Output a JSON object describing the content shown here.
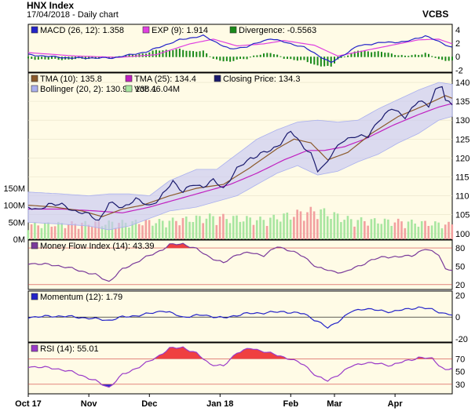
{
  "header": {
    "title": "HNX Index",
    "subtitle": "17/04/2018 - Daily chart",
    "brand": "VCBS"
  },
  "x_axis": {
    "labels": [
      "Oct 17",
      "Nov",
      "Dec",
      "Jan 18",
      "Feb",
      "Mar",
      "Apr"
    ]
  },
  "colors": {
    "panel_bg": "#fffbe6",
    "band_fill": "#c8c8f4",
    "band_line": "#aab0ee",
    "price": "#1a1a6e",
    "tma10": "#8b5a2b",
    "tma25": "#c020c0",
    "vol_up": "#a8e6a0",
    "vol_down": "#f2a0a0",
    "macd": "#2323c8",
    "exp": "#e040e0",
    "div": "#1a8a1a",
    "mfi": "#7a3a9a",
    "rsi": "#9a3ac8",
    "mom": "#2323c8",
    "overbought_fill": "#ef4040",
    "ref_line": "#d04040"
  },
  "chart_data": [
    {
      "type": "bar",
      "panel": "MACD",
      "legend": [
        {
          "label": "MACD (26, 12): 1.358",
          "color": "#2323c8"
        },
        {
          "label": "EXP (9): 1.914",
          "color": "#e040e0"
        },
        {
          "label": "Divergence: -0.5563",
          "color": "#1a8a1a"
        }
      ],
      "y_ticks": [
        "4",
        "2",
        "0",
        "-2"
      ],
      "ylim": [
        -2.3,
        4.8
      ],
      "n": 127,
      "macd_key": [
        [
          0,
          0.3
        ],
        [
          12,
          -0.2
        ],
        [
          25,
          -0.2
        ],
        [
          35,
          0.7
        ],
        [
          45,
          2.5
        ],
        [
          52,
          3.1
        ],
        [
          60,
          1.1
        ],
        [
          65,
          1.5
        ],
        [
          72,
          2.7
        ],
        [
          82,
          1.4
        ],
        [
          90,
          -0.9
        ],
        [
          98,
          1.6
        ],
        [
          105,
          2.1
        ],
        [
          112,
          2.2
        ],
        [
          118,
          3.1
        ],
        [
          126,
          1.36
        ]
      ],
      "exp_key": [
        [
          0,
          0.6
        ],
        [
          14,
          0.1
        ],
        [
          27,
          -0.1
        ],
        [
          38,
          0.3
        ],
        [
          48,
          1.9
        ],
        [
          55,
          2.6
        ],
        [
          62,
          1.6
        ],
        [
          70,
          1.9
        ],
        [
          76,
          2.4
        ],
        [
          85,
          1.7
        ],
        [
          92,
          0.1
        ],
        [
          100,
          0.9
        ],
        [
          108,
          1.7
        ],
        [
          116,
          2.5
        ],
        [
          122,
          2.6
        ],
        [
          126,
          1.91
        ]
      ]
    },
    {
      "type": "line",
      "panel": "Price",
      "legend": [
        {
          "label": "TMA (10): 135.8",
          "color": "#8b5a2b"
        },
        {
          "label": "TMA (25): 134.4",
          "color": "#c020c0"
        },
        {
          "label": "Closing Price: 134.3",
          "color": "#1a1a6e"
        },
        {
          "label": "Bollinger (20, 2): 130.9 - 138.1",
          "color": "#aab0ee"
        },
        {
          "label": "Vol: 46.04M",
          "color": "#a8e6a0"
        }
      ],
      "y_ticks": [
        "140",
        "135",
        "130",
        "125",
        "120",
        "115",
        "110",
        "105",
        "100"
      ],
      "ylim": [
        98.5,
        142.5
      ],
      "vol_ticks": [
        "150M",
        "100M",
        "50M",
        "0M"
      ],
      "vol_lim": [
        0,
        180
      ],
      "close_key": [
        [
          0,
          107
        ],
        [
          3,
          106
        ],
        [
          6,
          108
        ],
        [
          10,
          107.5
        ],
        [
          14,
          106
        ],
        [
          18,
          105
        ],
        [
          21,
          103.5
        ],
        [
          24,
          108
        ],
        [
          28,
          107
        ],
        [
          32,
          109
        ],
        [
          36,
          107.5
        ],
        [
          39,
          109
        ],
        [
          43,
          114
        ],
        [
          46,
          111
        ],
        [
          49,
          113
        ],
        [
          52,
          112.5
        ],
        [
          55,
          114
        ],
        [
          58,
          112
        ],
        [
          62,
          117
        ],
        [
          66,
          120
        ],
        [
          69,
          121
        ],
        [
          72,
          122
        ],
        [
          75,
          124
        ],
        [
          78,
          127
        ],
        [
          81,
          124
        ],
        [
          84,
          121
        ],
        [
          86,
          116.5
        ],
        [
          88,
          118
        ],
        [
          90,
          121
        ],
        [
          93,
          124
        ],
        [
          97,
          126
        ],
        [
          101,
          125.5
        ],
        [
          104,
          130
        ],
        [
          108,
          133
        ],
        [
          112,
          131
        ],
        [
          116,
          135
        ],
        [
          119,
          134
        ],
        [
          121,
          138
        ],
        [
          123,
          139
        ],
        [
          124,
          135
        ],
        [
          126,
          134.3
        ]
      ],
      "tma10_key": [
        [
          0,
          107.5
        ],
        [
          8,
          107
        ],
        [
          16,
          106
        ],
        [
          22,
          104.5
        ],
        [
          28,
          106.5
        ],
        [
          34,
          107.5
        ],
        [
          42,
          110
        ],
        [
          50,
          112
        ],
        [
          58,
          113
        ],
        [
          66,
          117.5
        ],
        [
          74,
          122.5
        ],
        [
          79,
          125
        ],
        [
          84,
          124
        ],
        [
          89,
          119.5
        ],
        [
          95,
          121.5
        ],
        [
          102,
          126.5
        ],
        [
          110,
          131
        ],
        [
          118,
          134
        ],
        [
          124,
          136.5
        ],
        [
          126,
          135.8
        ]
      ],
      "tma25_key": [
        [
          0,
          106.5
        ],
        [
          10,
          106.5
        ],
        [
          20,
          106
        ],
        [
          28,
          105.5
        ],
        [
          36,
          107
        ],
        [
          44,
          109
        ],
        [
          52,
          111
        ],
        [
          60,
          113
        ],
        [
          68,
          116
        ],
        [
          76,
          119.5
        ],
        [
          83,
          122
        ],
        [
          88,
          122
        ],
        [
          94,
          123
        ],
        [
          100,
          125
        ],
        [
          108,
          128.5
        ],
        [
          116,
          131.5
        ],
        [
          122,
          133.5
        ],
        [
          126,
          134.4
        ]
      ],
      "bb_upper_key": [
        [
          0,
          111
        ],
        [
          10,
          110.5
        ],
        [
          18,
          110
        ],
        [
          24,
          110.5
        ],
        [
          30,
          110.5
        ],
        [
          36,
          110
        ],
        [
          42,
          114
        ],
        [
          50,
          117
        ],
        [
          56,
          117
        ],
        [
          62,
          121
        ],
        [
          68,
          125
        ],
        [
          74,
          127.5
        ],
        [
          80,
          129.5
        ],
        [
          86,
          130
        ],
        [
          92,
          129.5
        ],
        [
          98,
          130
        ],
        [
          104,
          133
        ],
        [
          110,
          135.5
        ],
        [
          116,
          138
        ],
        [
          122,
          140
        ],
        [
          126,
          139.5
        ]
      ],
      "bb_lower_key": [
        [
          0,
          103
        ],
        [
          10,
          102.5
        ],
        [
          18,
          102
        ],
        [
          24,
          101
        ],
        [
          30,
          102
        ],
        [
          36,
          104
        ],
        [
          42,
          106
        ],
        [
          50,
          107
        ],
        [
          56,
          108.5
        ],
        [
          62,
          110
        ],
        [
          68,
          113
        ],
        [
          74,
          116
        ],
        [
          80,
          118
        ],
        [
          86,
          115.5
        ],
        [
          92,
          116.5
        ],
        [
          98,
          119
        ],
        [
          104,
          121
        ],
        [
          110,
          124
        ],
        [
          116,
          126.5
        ],
        [
          122,
          130
        ],
        [
          126,
          131
        ]
      ],
      "vol_key": [
        [
          0,
          45
        ],
        [
          20,
          50
        ],
        [
          40,
          55
        ],
        [
          55,
          70
        ],
        [
          70,
          60
        ],
        [
          80,
          80
        ],
        [
          86,
          90
        ],
        [
          96,
          60
        ],
        [
          110,
          55
        ],
        [
          126,
          46
        ]
      ]
    },
    {
      "type": "line",
      "panel": "Money Flow Index",
      "legend": [
        {
          "label": "Money Flow Index (14): 43.39",
          "color": "#7a3a9a"
        }
      ],
      "y_ticks": [
        "80",
        "50",
        "20"
      ],
      "ylim": [
        12,
        93
      ],
      "ref_lines": [
        80,
        20
      ],
      "key": [
        [
          0,
          55
        ],
        [
          8,
          52
        ],
        [
          14,
          45
        ],
        [
          20,
          36
        ],
        [
          24,
          25
        ],
        [
          28,
          45
        ],
        [
          34,
          62
        ],
        [
          40,
          78
        ],
        [
          42,
          85
        ],
        [
          46,
          87
        ],
        [
          50,
          78
        ],
        [
          54,
          65
        ],
        [
          58,
          55
        ],
        [
          62,
          70
        ],
        [
          66,
          72
        ],
        [
          70,
          68
        ],
        [
          74,
          82
        ],
        [
          78,
          76
        ],
        [
          82,
          65
        ],
        [
          86,
          48
        ],
        [
          90,
          42
        ],
        [
          94,
          40
        ],
        [
          98,
          50
        ],
        [
          102,
          60
        ],
        [
          106,
          66
        ],
        [
          110,
          65
        ],
        [
          114,
          68
        ],
        [
          118,
          78
        ],
        [
          122,
          70
        ],
        [
          124,
          45
        ],
        [
          126,
          43.4
        ]
      ]
    },
    {
      "type": "line",
      "panel": "Momentum",
      "legend": [
        {
          "label": "Momentum (12): 1.79",
          "color": "#2323c8"
        }
      ],
      "y_ticks": [
        "20",
        "0",
        "-20"
      ],
      "ylim": [
        -23,
        24
      ],
      "ref_lines": [
        0
      ],
      "key": [
        [
          0,
          0
        ],
        [
          10,
          1
        ],
        [
          18,
          -1
        ],
        [
          24,
          -3
        ],
        [
          28,
          0
        ],
        [
          34,
          2
        ],
        [
          40,
          6
        ],
        [
          46,
          0
        ],
        [
          52,
          2
        ],
        [
          58,
          -1
        ],
        [
          64,
          3
        ],
        [
          70,
          4
        ],
        [
          76,
          5
        ],
        [
          82,
          3
        ],
        [
          86,
          -4
        ],
        [
          89,
          -10
        ],
        [
          92,
          -4
        ],
        [
          96,
          5
        ],
        [
          100,
          8
        ],
        [
          104,
          6
        ],
        [
          108,
          5
        ],
        [
          112,
          7
        ],
        [
          116,
          9
        ],
        [
          120,
          7
        ],
        [
          124,
          3
        ],
        [
          126,
          1.8
        ]
      ]
    },
    {
      "type": "line",
      "panel": "RSI",
      "legend": [
        {
          "label": "RSI (14): 55.01",
          "color": "#9a3ac8"
        }
      ],
      "y_ticks": [
        "70",
        "50",
        "30"
      ],
      "ylim": [
        15,
        95
      ],
      "ref_lines": [
        70,
        30
      ],
      "key": [
        [
          0,
          58
        ],
        [
          8,
          55
        ],
        [
          14,
          48
        ],
        [
          20,
          35
        ],
        [
          24,
          25
        ],
        [
          28,
          45
        ],
        [
          34,
          60
        ],
        [
          38,
          72
        ],
        [
          42,
          86
        ],
        [
          46,
          88
        ],
        [
          50,
          78
        ],
        [
          54,
          62
        ],
        [
          58,
          58
        ],
        [
          62,
          80
        ],
        [
          66,
          86
        ],
        [
          70,
          82
        ],
        [
          74,
          75
        ],
        [
          78,
          70
        ],
        [
          82,
          60
        ],
        [
          86,
          42
        ],
        [
          89,
          35
        ],
        [
          92,
          45
        ],
        [
          96,
          58
        ],
        [
          100,
          64
        ],
        [
          104,
          62
        ],
        [
          108,
          60
        ],
        [
          112,
          66
        ],
        [
          116,
          72
        ],
        [
          120,
          70
        ],
        [
          124,
          52
        ],
        [
          126,
          55
        ]
      ]
    }
  ]
}
